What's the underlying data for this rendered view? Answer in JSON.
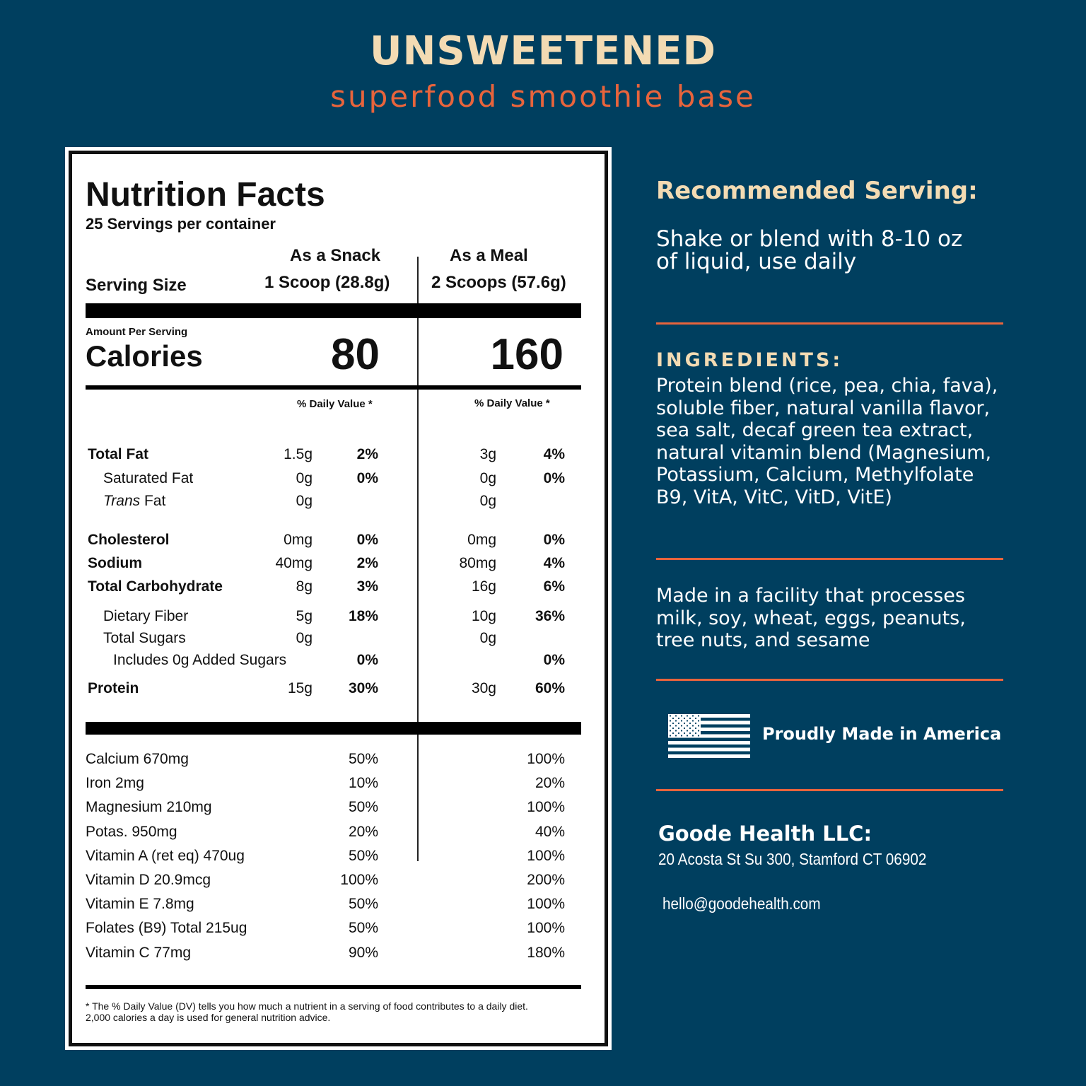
{
  "header": {
    "title": "UNSWEETENED",
    "subtitle": "superfood smoothie base"
  },
  "label": {
    "heading": "Nutrition Facts",
    "servings": "25 Servings per container",
    "serving_size_label": "Serving Size",
    "snack_label": "As a Snack",
    "snack_size": "1 Scoop (28.8g)",
    "meal_label": "As a Meal",
    "meal_size": "2 Scoops (57.6g)",
    "amount_per_serving": "Amount Per Serving",
    "calories_label": "Calories",
    "calories_snack": "80",
    "calories_meal": "160",
    "dv_header": "% Daily Value *",
    "nutrients": [
      {
        "name": "Total Fat",
        "snack": "1.5g",
        "snack_dv": "2%",
        "meal": "3g",
        "meal_dv": "4%"
      },
      {
        "name": "Saturated Fat",
        "snack": "0g",
        "snack_dv": "0%",
        "meal": "0g",
        "meal_dv": "0%"
      },
      {
        "name_italic": "Trans",
        "name": " Fat",
        "snack": "0g",
        "snack_dv": "",
        "meal": "0g",
        "meal_dv": ""
      },
      {
        "name": "Cholesterol",
        "snack": "0mg",
        "snack_dv": "0%",
        "meal": "0mg",
        "meal_dv": "0%"
      },
      {
        "name": "Sodium",
        "snack": "40mg",
        "snack_dv": "2%",
        "meal": "80mg",
        "meal_dv": "4%"
      },
      {
        "name": "Total Carbohydrate",
        "snack": "8g",
        "snack_dv": "3%",
        "meal": "16g",
        "meal_dv": "6%"
      },
      {
        "name": "Dietary Fiber",
        "snack": "5g",
        "snack_dv": "18%",
        "meal": "10g",
        "meal_dv": "36%"
      },
      {
        "name": "Total Sugars",
        "snack": "0g",
        "snack_dv": "",
        "meal": "0g",
        "meal_dv": ""
      },
      {
        "name": "Includes 0g Added Sugars",
        "snack": "",
        "snack_dv": "0%",
        "meal": "",
        "meal_dv": "0%"
      },
      {
        "name": "Protein",
        "snack": "15g",
        "snack_dv": "30%",
        "meal": "30g",
        "meal_dv": "60%"
      }
    ],
    "vitamins": [
      {
        "name": "Calcium 670mg",
        "snack_dv": "50%",
        "meal_dv": "100%"
      },
      {
        "name": "Iron 2mg",
        "snack_dv": "10%",
        "meal_dv": "20%"
      },
      {
        "name": "Magnesium 210mg",
        "snack_dv": "50%",
        "meal_dv": "100%"
      },
      {
        "name": "Potas. 950mg",
        "snack_dv": "20%",
        "meal_dv": "40%"
      },
      {
        "name": "Vitamin A (ret eq) 470ug",
        "snack_dv": "50%",
        "meal_dv": "100%"
      },
      {
        "name": "Vitamin D 20.9mcg",
        "snack_dv": "100%",
        "meal_dv": "200%"
      },
      {
        "name": "Vitamin E 7.8mg",
        "snack_dv": "50%",
        "meal_dv": "100%"
      },
      {
        "name": "Folates (B9) Total 215ug",
        "snack_dv": "50%",
        "meal_dv": "100%"
      },
      {
        "name": "Vitamin C 77mg",
        "snack_dv": "90%",
        "meal_dv": "180%"
      }
    ],
    "footnote_1": "* The % Daily Value (DV) tells you how much a nutrient in a serving of food contributes to a daily diet.",
    "footnote_2": "2,000 calories a day is used for general nutrition advice."
  },
  "side": {
    "serving_heading": "Recommended Serving:",
    "serving_line1": "Shake or blend with 8-10 oz",
    "serving_line2": "of liquid, use daily",
    "ingredients_heading": "INGREDIENTS:",
    "ingredients_lines": [
      "Protein blend (rice, pea, chia, fava),",
      "soluble fiber, natural vanilla flavor,",
      "sea salt, decaf green tea extract,",
      "natural vitamin blend (Magnesium,",
      "Potassium, Calcium, Methylfolate",
      "B9, VitA,  VitC, VitD, VitE)"
    ],
    "allergen_lines": [
      "Made in a facility that processes",
      "milk, soy, wheat, eggs, peanuts,",
      "tree nuts, and sesame"
    ],
    "flag_icon": "us-flag-icon",
    "made_in": "Proudly Made in America",
    "company": "Goode Health LLC:",
    "address": "20 Acosta St Su 300, Stamford CT 06902",
    "email": "hello@goodehealth.com"
  },
  "colors": {
    "background": "#003f5f",
    "title": "#f3dbb3",
    "accent": "#e8643c"
  }
}
